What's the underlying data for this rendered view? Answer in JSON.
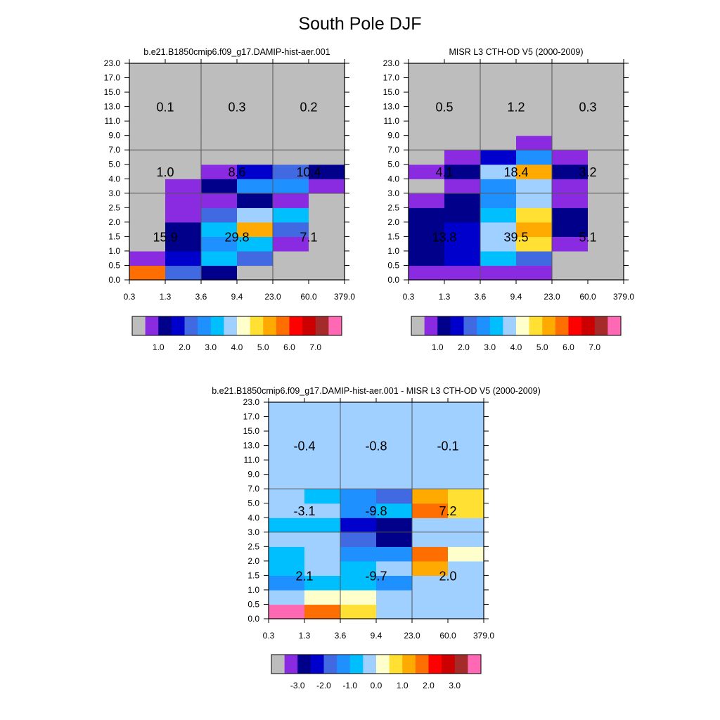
{
  "page": {
    "title": "South Pole DJF"
  },
  "palette": {
    "main": [
      "#bdbdbd",
      "#8a2be2",
      "#00008b",
      "#0000cd",
      "#4169e1",
      "#1e90ff",
      "#00bfff",
      "#a0d0ff",
      "#ffffcc",
      "#ffe033",
      "#ffaa00",
      "#ff6e00",
      "#ff0000",
      "#cc0000",
      "#a52a2a",
      "#ff69b4"
    ],
    "main_labels": [
      "1.0",
      "2.0",
      "3.0",
      "4.0",
      "5.0",
      "6.0",
      "7.0"
    ],
    "diff_labels": [
      "-3.0",
      "-2.0",
      "-1.0",
      "0.0",
      "1.0",
      "2.0",
      "3.0"
    ]
  },
  "chart_data": [
    {
      "id": "model",
      "type": "heatmap",
      "title": "b.e21.B1850cmip6.f09_g17.DAMIP-hist-aer.001",
      "x_ticks": [
        "0.3",
        "1.3",
        "3.6",
        "9.4",
        "23.0",
        "60.0",
        "379.0"
      ],
      "y_ticks": [
        "0.0",
        "0.5",
        "1.0",
        "1.5",
        "2.0",
        "2.5",
        "3.0",
        "4.0",
        "5.0",
        "7.0",
        "9.0",
        "11.0",
        "13.0",
        "15.0",
        "17.0",
        "23.0"
      ],
      "y_index_rows_bottom_to_top": [
        [
          11,
          4,
          2,
          0,
          0,
          0
        ],
        [
          1,
          3,
          6,
          4,
          0,
          0
        ],
        [
          0,
          2,
          5,
          6,
          1,
          0
        ],
        [
          0,
          2,
          6,
          10,
          4,
          0
        ],
        [
          0,
          1,
          4,
          7,
          6,
          0
        ],
        [
          0,
          1,
          1,
          2,
          1,
          0
        ],
        [
          0,
          1,
          2,
          5,
          5,
          1
        ],
        [
          0,
          0,
          1,
          3,
          4,
          2
        ],
        [
          0,
          0,
          0,
          0,
          0,
          0
        ],
        [
          0,
          0,
          0,
          0,
          0,
          0
        ],
        [
          0,
          0,
          0,
          0,
          0,
          0
        ],
        [
          0,
          0,
          0,
          0,
          0,
          0
        ],
        [
          0,
          0,
          0,
          0,
          0,
          0
        ],
        [
          0,
          0,
          0,
          0,
          0,
          0
        ],
        [
          0,
          0,
          0,
          0,
          0,
          0
        ]
      ],
      "block_labels": [
        {
          "text": "0.1",
          "col": 0,
          "band": "high"
        },
        {
          "text": "0.3",
          "col": 1,
          "band": "high"
        },
        {
          "text": "0.2",
          "col": 2,
          "band": "high"
        },
        {
          "text": "1.0",
          "col": 0,
          "band": "mid"
        },
        {
          "text": "8.6",
          "col": 1,
          "band": "mid"
        },
        {
          "text": "10.4",
          "col": 2,
          "band": "mid"
        },
        {
          "text": "15.9",
          "col": 0,
          "band": "low"
        },
        {
          "text": "29.8",
          "col": 1,
          "band": "low"
        },
        {
          "text": "7.1",
          "col": 2,
          "band": "low"
        }
      ]
    },
    {
      "id": "obs",
      "type": "heatmap",
      "title": "MISR L3 CTH-OD V5 (2000-2009)",
      "x_ticks": [
        "0.3",
        "1.3",
        "3.6",
        "9.4",
        "23.0",
        "60.0",
        "379.0"
      ],
      "y_ticks": [
        "0.0",
        "0.5",
        "1.0",
        "1.5",
        "2.0",
        "2.5",
        "3.0",
        "4.0",
        "5.0",
        "7.0",
        "9.0",
        "11.0",
        "13.0",
        "15.0",
        "17.0",
        "23.0"
      ],
      "y_index_rows_bottom_to_top": [
        [
          1,
          1,
          1,
          1,
          0,
          0
        ],
        [
          2,
          3,
          6,
          4,
          0,
          0
        ],
        [
          2,
          3,
          7,
          9,
          1,
          0
        ],
        [
          2,
          3,
          7,
          10,
          2,
          0
        ],
        [
          2,
          2,
          6,
          9,
          2,
          0
        ],
        [
          1,
          2,
          5,
          7,
          1,
          0
        ],
        [
          0,
          1,
          5,
          7,
          1,
          0
        ],
        [
          1,
          2,
          7,
          10,
          2,
          0
        ],
        [
          0,
          1,
          3,
          5,
          1,
          0
        ],
        [
          0,
          0,
          0,
          1,
          0,
          0
        ],
        [
          0,
          0,
          0,
          0,
          0,
          0
        ],
        [
          0,
          0,
          0,
          0,
          0,
          0
        ],
        [
          0,
          0,
          0,
          0,
          0,
          0
        ],
        [
          0,
          0,
          0,
          0,
          0,
          0
        ],
        [
          0,
          0,
          0,
          0,
          0,
          0
        ]
      ],
      "block_labels": [
        {
          "text": "0.5",
          "col": 0,
          "band": "high"
        },
        {
          "text": "1.2",
          "col": 1,
          "band": "high"
        },
        {
          "text": "0.3",
          "col": 2,
          "band": "high"
        },
        {
          "text": "4.1",
          "col": 0,
          "band": "mid"
        },
        {
          "text": "18.4",
          "col": 1,
          "band": "mid"
        },
        {
          "text": "3.2",
          "col": 2,
          "band": "mid"
        },
        {
          "text": "13.8",
          "col": 0,
          "band": "low"
        },
        {
          "text": "39.5",
          "col": 1,
          "band": "low"
        },
        {
          "text": "5.1",
          "col": 2,
          "band": "low"
        }
      ]
    },
    {
      "id": "diff",
      "type": "heatmap",
      "title": "b.e21.B1850cmip6.f09_g17.DAMIP-hist-aer.001 - MISR L3 CTH-OD V5 (2000-2009)",
      "x_ticks": [
        "0.3",
        "1.3",
        "3.6",
        "9.4",
        "23.0",
        "60.0",
        "379.0"
      ],
      "y_ticks": [
        "0.0",
        "0.5",
        "1.0",
        "1.5",
        "2.0",
        "2.5",
        "3.0",
        "4.0",
        "5.0",
        "7.0",
        "9.0",
        "11.0",
        "13.0",
        "15.0",
        "17.0",
        "23.0"
      ],
      "y_index_rows_bottom_to_top": [
        [
          15,
          11,
          9,
          7,
          7,
          7
        ],
        [
          7,
          8,
          8,
          7,
          7,
          7
        ],
        [
          5,
          6,
          6,
          5,
          7,
          7
        ],
        [
          6,
          7,
          6,
          7,
          10,
          7
        ],
        [
          6,
          7,
          5,
          5,
          11,
          8
        ],
        [
          7,
          7,
          4,
          2,
          7,
          7
        ],
        [
          6,
          6,
          3,
          2,
          7,
          7
        ],
        [
          7,
          7,
          5,
          6,
          11,
          9
        ],
        [
          7,
          6,
          5,
          4,
          10,
          9
        ],
        [
          7,
          7,
          7,
          7,
          7,
          7
        ],
        [
          7,
          7,
          7,
          7,
          7,
          7
        ],
        [
          7,
          7,
          7,
          7,
          7,
          7
        ],
        [
          7,
          7,
          7,
          7,
          7,
          7
        ],
        [
          7,
          7,
          7,
          7,
          7,
          7
        ],
        [
          7,
          7,
          7,
          7,
          7,
          7
        ]
      ],
      "block_labels": [
        {
          "text": "-0.4",
          "col": 0,
          "band": "high"
        },
        {
          "text": "-0.8",
          "col": 1,
          "band": "high"
        },
        {
          "text": "-0.1",
          "col": 2,
          "band": "high"
        },
        {
          "text": "-3.1",
          "col": 0,
          "band": "mid"
        },
        {
          "text": "-9.8",
          "col": 1,
          "band": "mid"
        },
        {
          "text": "7.2",
          "col": 2,
          "band": "mid"
        },
        {
          "text": "2.1",
          "col": 0,
          "band": "low"
        },
        {
          "text": "-9.7",
          "col": 1,
          "band": "low"
        },
        {
          "text": "2.0",
          "col": 2,
          "band": "low"
        }
      ]
    }
  ]
}
